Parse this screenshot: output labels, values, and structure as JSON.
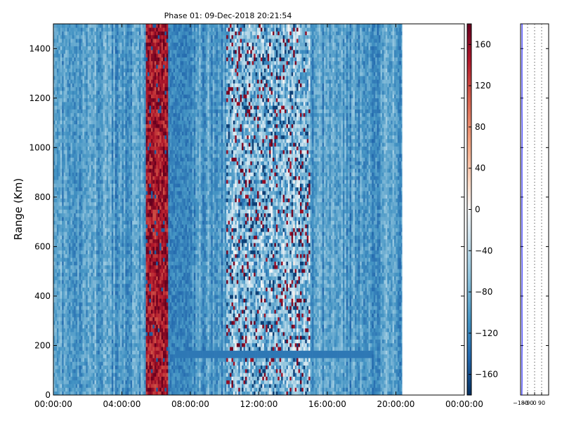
{
  "chart_data": [
    {
      "type": "heatmap",
      "title": "Phase 01: 09-Dec-2018 20:21:54",
      "xlabel": "",
      "ylabel": "Range (Km)",
      "x_tick_labels": [
        "00:00:00",
        "04:00:00",
        "08:00:00",
        "12:00:00",
        "16:00:00",
        "20:00:00",
        "00:00:00"
      ],
      "x_range_hours": [
        0,
        24
      ],
      "data_end_hour": 20.36,
      "y_ticks": [
        0,
        200,
        400,
        600,
        800,
        1000,
        1200,
        1400
      ],
      "y_range": [
        0,
        1500
      ],
      "colormap": "RdBu_r",
      "value_range": [
        -180,
        180
      ],
      "colorbar_ticks": [
        160,
        120,
        80,
        40,
        0,
        -40,
        -80,
        -120,
        -160
      ],
      "background_phase": -100,
      "features": [
        {
          "label": "high phase band",
          "start_hour": 5.3,
          "end_hour": 6.6,
          "phase": 150
        },
        {
          "label": "low phase band",
          "start_hour": 6.6,
          "end_hour": 8.0,
          "phase": -120
        },
        {
          "label": "noisy region",
          "start_hour": 10.0,
          "end_hour": 14.9,
          "phase": -40
        },
        {
          "label": "range layer",
          "start_hour": 7.0,
          "end_hour": 18.5,
          "range_km": 160,
          "phase": -130
        }
      ],
      "grid": false
    },
    {
      "type": "line",
      "title": "",
      "x_tick_labels": [
        "−180",
        "−90",
        "0",
        "90"
      ],
      "xlim": [
        -180,
        180
      ],
      "ylim": [
        0,
        1500
      ],
      "grid": "dotted vertical",
      "series": [
        {
          "color": "#0000ff",
          "x": [
            -163,
            -161,
            -162,
            -160,
            -161,
            -162,
            -161,
            -160,
            -162,
            -161,
            -162,
            -161,
            -162,
            -161,
            -160,
            -162,
            -161,
            -162,
            -161,
            -161
          ],
          "y": [
            0,
            60,
            150,
            220,
            300,
            380,
            440,
            520,
            600,
            680,
            760,
            840,
            920,
            1000,
            1080,
            1160,
            1240,
            1320,
            1400,
            1500
          ]
        }
      ]
    }
  ]
}
